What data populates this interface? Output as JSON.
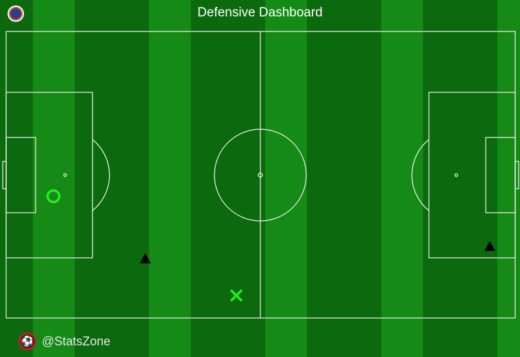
{
  "header": {
    "title": "Defensive Dashboard",
    "team_badge_icon": "team-crest-icon"
  },
  "pitch": {
    "events": [
      {
        "type": "circle",
        "color": "#22ee22"
      },
      {
        "type": "triangle",
        "color": "#000000"
      },
      {
        "type": "triangle",
        "color": "#000000"
      },
      {
        "type": "cross",
        "color": "#22ee22"
      }
    ]
  },
  "footer": {
    "handle": "@StatsZone",
    "logo_icon": "soccer-ball-icon"
  }
}
